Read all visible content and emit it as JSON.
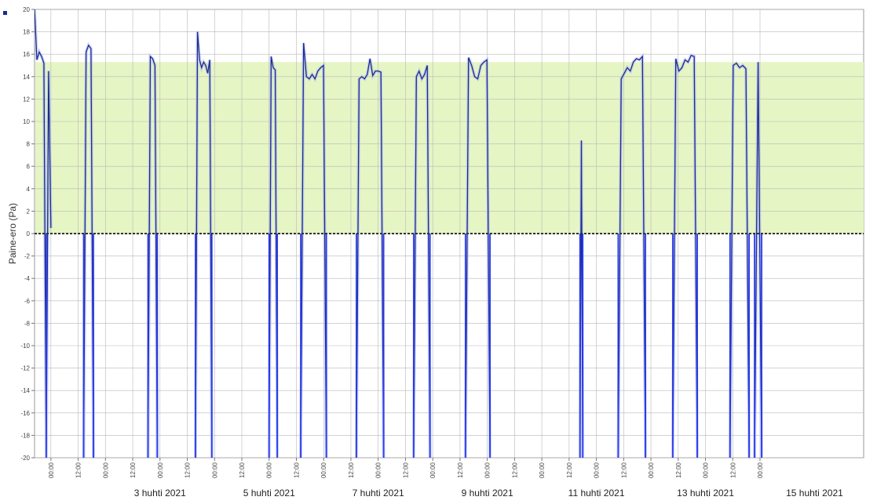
{
  "chart_data": {
    "type": "line",
    "title": "",
    "xlabel": "",
    "ylabel": "Paine-ero (Pa)",
    "ylim": [
      -20,
      20
    ],
    "yticks": [
      -20,
      -18,
      -16,
      -14,
      -12,
      -10,
      -8,
      -6,
      -4,
      -2,
      0,
      2,
      4,
      6,
      8,
      10,
      12,
      14,
      16,
      18,
      20
    ],
    "xlim": [
      0,
      15.2
    ],
    "x_unit": "days since first tick (approx.)",
    "hour_ticks": [
      "00:00",
      "12:00",
      "00:00",
      "12:00",
      "00:00",
      "12:00",
      "00:00",
      "12:00",
      "00:00",
      "12:00",
      "00:00",
      "12:00",
      "00:00",
      "12:00",
      "00:00",
      "12:00",
      "00:00",
      "12:00",
      "00:00",
      "12:00",
      "00:00",
      "12:00",
      "00:00",
      "12:00",
      "00:00",
      "12:00",
      "00:00"
    ],
    "date_labels": [
      {
        "label": "3 huhti 2021",
        "x": 2.0
      },
      {
        "label": "5 huhti 2021",
        "x": 4.0
      },
      {
        "label": "7 huhti 2021",
        "x": 6.0
      },
      {
        "label": "9 huhti 2021",
        "x": 8.0
      },
      {
        "label": "11 huhti 2021",
        "x": 10.0
      },
      {
        "label": "13 huhti 2021",
        "x": 12.0
      },
      {
        "label": "15 huhti 2021",
        "x": 14.0
      }
    ],
    "target_band": {
      "from": 0,
      "to": 15.3,
      "color": "#e6f5c4"
    },
    "zero_line_color": "#333333",
    "grid": true,
    "legend_marker_color": "#1a2a99",
    "series": [
      {
        "color": "#1c2c8e",
        "segments": [
          {
            "start": 0.0,
            "end": 0.3,
            "values": [
              20,
              15.5,
              16.2,
              15.8,
              15.2,
              -20,
              14.5,
              0.5
            ]
          },
          {
            "start": 0.9,
            "end": 1.08,
            "values": [
              -20,
              16.2,
              16.8,
              16.5,
              -20
            ]
          },
          {
            "start": 2.08,
            "end": 2.25,
            "values": [
              -20,
              15.8,
              15.6,
              15.0,
              -20
            ]
          },
          {
            "start": 2.95,
            "end": 3.25,
            "values": [
              -20,
              18.0,
              15.5,
              14.8,
              15.3,
              15.0,
              14.3,
              15.5,
              -20
            ]
          },
          {
            "start": 4.3,
            "end": 4.45,
            "values": [
              -20,
              15.8,
              14.8,
              14.6,
              -20
            ]
          },
          {
            "start": 4.88,
            "end": 5.35,
            "values": [
              -20,
              17.0,
              14.0,
              13.8,
              14.2,
              13.8,
              14.5,
              14.8,
              15.0,
              -20
            ]
          },
          {
            "start": 5.9,
            "end": 6.4,
            "values": [
              -20,
              13.8,
              14.0,
              13.8,
              14.2,
              15.6,
              14.1,
              14.5,
              14.5,
              14.4,
              -20
            ]
          },
          {
            "start": 6.95,
            "end": 7.25,
            "values": [
              -20,
              14.0,
              14.5,
              13.8,
              14.2,
              15.0,
              -20
            ]
          },
          {
            "start": 7.9,
            "end": 8.35,
            "values": [
              -20,
              15.7,
              15.0,
              14.0,
              13.8,
              15.0,
              15.3,
              15.5,
              -20
            ]
          },
          {
            "start": 10.0,
            "end": 10.05,
            "values": [
              -20,
              8.3,
              -20
            ]
          },
          {
            "start": 10.7,
            "end": 11.2,
            "values": [
              -20,
              13.8,
              14.3,
              14.8,
              14.5,
              15.3,
              15.6,
              15.5,
              15.8,
              -20
            ]
          },
          {
            "start": 11.7,
            "end": 12.15,
            "values": [
              -20,
              15.6,
              14.5,
              14.8,
              15.5,
              15.3,
              15.9,
              15.8,
              -20
            ]
          },
          {
            "start": 12.75,
            "end": 13.1,
            "values": [
              -20,
              15.0,
              15.2,
              14.8,
              15.0,
              14.7,
              -20
            ]
          },
          {
            "start": 13.2,
            "end": 13.33,
            "values": [
              -20,
              15.3,
              -20
            ]
          }
        ]
      }
    ]
  }
}
